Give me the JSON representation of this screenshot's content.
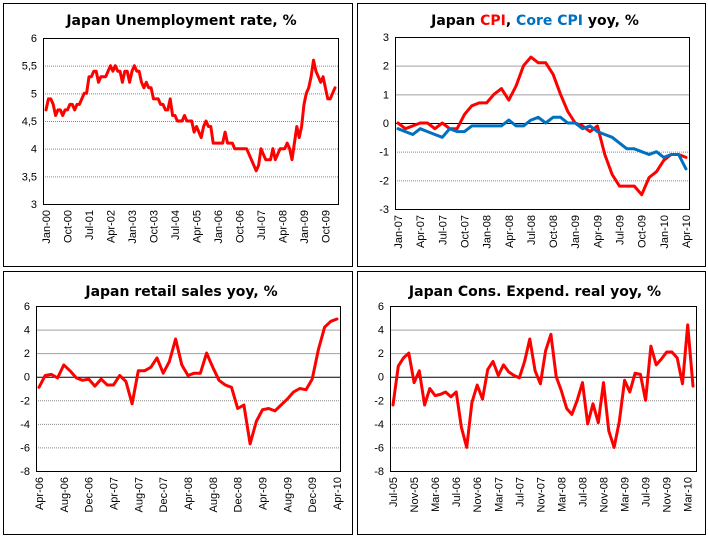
{
  "chart_data": [
    {
      "type": "line",
      "title": "Japan Unemployment rate, %",
      "title_parts": [
        {
          "text": "Japan Unemployment rate, %",
          "color": "#000000"
        }
      ],
      "xlabel": "",
      "ylabel": "",
      "ylim": [
        3,
        6
      ],
      "yticks": [
        3,
        3.5,
        4,
        4.5,
        5,
        5.5,
        6
      ],
      "ytick_labels": [
        "3",
        "3,5",
        "4",
        "4,5",
        "5",
        "5,5",
        "6"
      ],
      "zero_line": false,
      "start": "Jan-00",
      "frequency": "monthly",
      "xticks": [
        {
          "i": 0,
          "label": "Jan-00"
        },
        {
          "i": 9,
          "label": "Oct-00"
        },
        {
          "i": 18,
          "label": "Jul-01"
        },
        {
          "i": 27,
          "label": "Apr-02"
        },
        {
          "i": 36,
          "label": "Jan-03"
        },
        {
          "i": 45,
          "label": "Oct-03"
        },
        {
          "i": 54,
          "label": "Jul-04"
        },
        {
          "i": 63,
          "label": "Apr-05"
        },
        {
          "i": 72,
          "label": "Jan-06"
        },
        {
          "i": 81,
          "label": "Oct-06"
        },
        {
          "i": 90,
          "label": "Jul-07"
        },
        {
          "i": 99,
          "label": "Apr-08"
        },
        {
          "i": 108,
          "label": "Jan-09"
        },
        {
          "i": 117,
          "label": "Oct-09"
        }
      ],
      "series": [
        {
          "name": "Unemployment rate",
          "color": "#FF0000",
          "values": [
            4.7,
            4.9,
            4.9,
            4.8,
            4.6,
            4.7,
            4.7,
            4.6,
            4.7,
            4.7,
            4.8,
            4.8,
            4.7,
            4.8,
            4.8,
            4.9,
            5.0,
            5.0,
            5.3,
            5.3,
            5.4,
            5.4,
            5.2,
            5.3,
            5.3,
            5.3,
            5.4,
            5.5,
            5.4,
            5.5,
            5.4,
            5.4,
            5.2,
            5.4,
            5.4,
            5.2,
            5.4,
            5.5,
            5.4,
            5.4,
            5.2,
            5.1,
            5.2,
            5.1,
            5.1,
            4.9,
            4.9,
            4.9,
            4.8,
            4.8,
            4.7,
            4.7,
            4.9,
            4.6,
            4.6,
            4.5,
            4.5,
            4.5,
            4.6,
            4.5,
            4.5,
            4.5,
            4.3,
            4.4,
            4.3,
            4.2,
            4.4,
            4.5,
            4.4,
            4.4,
            4.1,
            4.1,
            4.1,
            4.1,
            4.1,
            4.3,
            4.1,
            4.1,
            4.1,
            4.0,
            4.0,
            4.0,
            4.0,
            4.0,
            4.0,
            3.9,
            3.8,
            3.7,
            3.6,
            3.7,
            4.0,
            3.9,
            3.8,
            3.8,
            3.8,
            4.0,
            3.8,
            3.9,
            4.0,
            4.0,
            4.0,
            4.1,
            4.0,
            3.8,
            4.1,
            4.4,
            4.2,
            4.4,
            4.8,
            5.0,
            5.1,
            5.3,
            5.6,
            5.4,
            5.3,
            5.2,
            5.3,
            5.1,
            4.9,
            4.9,
            5.0,
            5.1
          ]
        }
      ]
    },
    {
      "type": "line",
      "title": "Japan CPI, Core CPI yoy, %",
      "title_parts": [
        {
          "text": "Japan ",
          "color": "#000000"
        },
        {
          "text": "CPI",
          "color": "#FF0000"
        },
        {
          "text": ", ",
          "color": "#000000"
        },
        {
          "text": "Core CPI",
          "color": "#0070C0"
        },
        {
          "text": " yoy, %",
          "color": "#000000"
        }
      ],
      "xlabel": "",
      "ylabel": "",
      "ylim": [
        -3,
        3
      ],
      "yticks": [
        -3,
        -2,
        -1,
        0,
        1,
        2,
        3
      ],
      "ytick_labels": [
        "-3",
        "-2",
        "-1",
        "0",
        "1",
        "2",
        "3"
      ],
      "zero_line": true,
      "start": "Jan-07",
      "frequency": "monthly",
      "xticks": [
        {
          "i": 0,
          "label": "Jan-07"
        },
        {
          "i": 3,
          "label": "Apr-07"
        },
        {
          "i": 6,
          "label": "Jul-07"
        },
        {
          "i": 9,
          "label": "Oct-07"
        },
        {
          "i": 12,
          "label": "Jan-08"
        },
        {
          "i": 15,
          "label": "Apr-08"
        },
        {
          "i": 18,
          "label": "Jul-08"
        },
        {
          "i": 21,
          "label": "Oct-08"
        },
        {
          "i": 24,
          "label": "Jan-09"
        },
        {
          "i": 27,
          "label": "Apr-09"
        },
        {
          "i": 30,
          "label": "Jul-09"
        },
        {
          "i": 33,
          "label": "Oct-09"
        },
        {
          "i": 36,
          "label": "Jan-10"
        },
        {
          "i": 39,
          "label": "Apr-10"
        }
      ],
      "series": [
        {
          "name": "CPI",
          "color": "#FF0000",
          "values": [
            0.0,
            -0.2,
            -0.1,
            0.0,
            0.0,
            -0.2,
            0.0,
            -0.2,
            -0.2,
            0.3,
            0.6,
            0.7,
            0.7,
            1.0,
            1.2,
            0.8,
            1.3,
            2.0,
            2.3,
            2.1,
            2.1,
            1.7,
            1.0,
            0.4,
            0.0,
            -0.1,
            -0.3,
            -0.1,
            -1.1,
            -1.8,
            -2.2,
            -2.2,
            -2.2,
            -2.5,
            -1.9,
            -1.7,
            -1.3,
            -1.1,
            -1.1,
            -1.2
          ]
        },
        {
          "name": "Core CPI",
          "color": "#0070C0",
          "values": [
            -0.2,
            -0.3,
            -0.4,
            -0.2,
            -0.3,
            -0.4,
            -0.5,
            -0.2,
            -0.3,
            -0.3,
            -0.1,
            -0.1,
            -0.1,
            -0.1,
            -0.1,
            0.1,
            -0.1,
            -0.1,
            0.1,
            0.2,
            0.0,
            0.2,
            0.2,
            0.0,
            0.0,
            -0.2,
            -0.1,
            -0.3,
            -0.4,
            -0.5,
            -0.7,
            -0.9,
            -0.9,
            -1.0,
            -1.1,
            -1.0,
            -1.2,
            -1.1,
            -1.1,
            -1.6
          ]
        }
      ]
    },
    {
      "type": "line",
      "title": "Japan retail sales yoy, %",
      "title_parts": [
        {
          "text": "Japan retail sales yoy, %",
          "color": "#000000"
        }
      ],
      "xlabel": "",
      "ylabel": "",
      "ylim": [
        -8,
        6
      ],
      "yticks": [
        -8,
        -6,
        -4,
        -2,
        0,
        2,
        4,
        6
      ],
      "ytick_labels": [
        "-8",
        "-6",
        "-4",
        "-2",
        "0",
        "2",
        "4",
        "6"
      ],
      "zero_line": true,
      "start": "Apr-06",
      "frequency": "monthly",
      "xticks": [
        {
          "i": 0,
          "label": "Apr-06"
        },
        {
          "i": 4,
          "label": "Aug-06"
        },
        {
          "i": 8,
          "label": "Dec-06"
        },
        {
          "i": 12,
          "label": "Apr-07"
        },
        {
          "i": 16,
          "label": "Aug-07"
        },
        {
          "i": 20,
          "label": "Dec-07"
        },
        {
          "i": 24,
          "label": "Apr-08"
        },
        {
          "i": 28,
          "label": "Aug-08"
        },
        {
          "i": 32,
          "label": "Dec-08"
        },
        {
          "i": 36,
          "label": "Apr-09"
        },
        {
          "i": 40,
          "label": "Aug-09"
        },
        {
          "i": 44,
          "label": "Dec-09"
        },
        {
          "i": 48,
          "label": "Apr-10"
        }
      ],
      "series": [
        {
          "name": "Retail sales yoy",
          "color": "#FF0000",
          "values": [
            -0.9,
            0.1,
            0.2,
            -0.1,
            1.0,
            0.5,
            -0.1,
            -0.3,
            -0.2,
            -0.8,
            -0.2,
            -0.7,
            -0.7,
            0.1,
            -0.4,
            -2.3,
            0.5,
            0.5,
            0.8,
            1.6,
            0.3,
            1.3,
            3.2,
            1.0,
            0.1,
            0.3,
            0.3,
            2.0,
            0.8,
            -0.3,
            -0.7,
            -0.9,
            -2.7,
            -2.4,
            -5.7,
            -3.8,
            -2.8,
            -2.7,
            -2.9,
            -2.4,
            -1.9,
            -1.3,
            -1.0,
            -1.1,
            -0.2,
            2.3,
            4.2,
            4.7,
            4.9
          ]
        }
      ]
    },
    {
      "type": "line",
      "title": "Japan Cons. Expend. real yoy, %",
      "title_parts": [
        {
          "text": "Japan Cons. Expend. real yoy, %",
          "color": "#000000"
        }
      ],
      "xlabel": "",
      "ylabel": "",
      "ylim": [
        -8,
        6
      ],
      "yticks": [
        -8,
        -6,
        -4,
        -2,
        0,
        2,
        4,
        6
      ],
      "ytick_labels": [
        "-8",
        "-6",
        "-4",
        "-2",
        "0",
        "2",
        "4",
        "6"
      ],
      "zero_line": true,
      "start": "Jul-05",
      "frequency": "monthly",
      "xticks": [
        {
          "i": 0,
          "label": "Jul-05"
        },
        {
          "i": 4,
          "label": "Nov-05"
        },
        {
          "i": 8,
          "label": "Mar-06"
        },
        {
          "i": 12,
          "label": "Jul-06"
        },
        {
          "i": 16,
          "label": "Nov-06"
        },
        {
          "i": 20,
          "label": "Mar-07"
        },
        {
          "i": 24,
          "label": "Jul-07"
        },
        {
          "i": 28,
          "label": "Nov-07"
        },
        {
          "i": 32,
          "label": "Mar-08"
        },
        {
          "i": 36,
          "label": "Jul-08"
        },
        {
          "i": 40,
          "label": "Nov-08"
        },
        {
          "i": 44,
          "label": "Mar-09"
        },
        {
          "i": 48,
          "label": "Jul-09"
        },
        {
          "i": 52,
          "label": "Nov-09"
        },
        {
          "i": 56,
          "label": "Mar-10"
        }
      ],
      "series": [
        {
          "name": "Consumer expenditure real yoy",
          "color": "#FF0000",
          "values": [
            -2.4,
            0.9,
            1.6,
            2.0,
            -0.5,
            0.5,
            -2.4,
            -1.0,
            -1.6,
            -1.5,
            -1.3,
            -1.7,
            -1.3,
            -4.3,
            -6.0,
            -2.2,
            -0.7,
            -1.9,
            0.6,
            1.3,
            0.1,
            1.0,
            0.4,
            0.1,
            -0.1,
            1.3,
            3.2,
            0.5,
            -0.6,
            2.2,
            3.6,
            0.0,
            -1.2,
            -2.7,
            -3.2,
            -2.0,
            -0.5,
            -4.0,
            -2.3,
            -3.9,
            -0.5,
            -4.6,
            -6.0,
            -3.8,
            -0.3,
            -1.3,
            0.3,
            0.2,
            -2.0,
            2.6,
            1.0,
            1.5,
            2.1,
            2.1,
            1.6,
            -0.6,
            4.4,
            -0.8
          ]
        }
      ]
    }
  ]
}
